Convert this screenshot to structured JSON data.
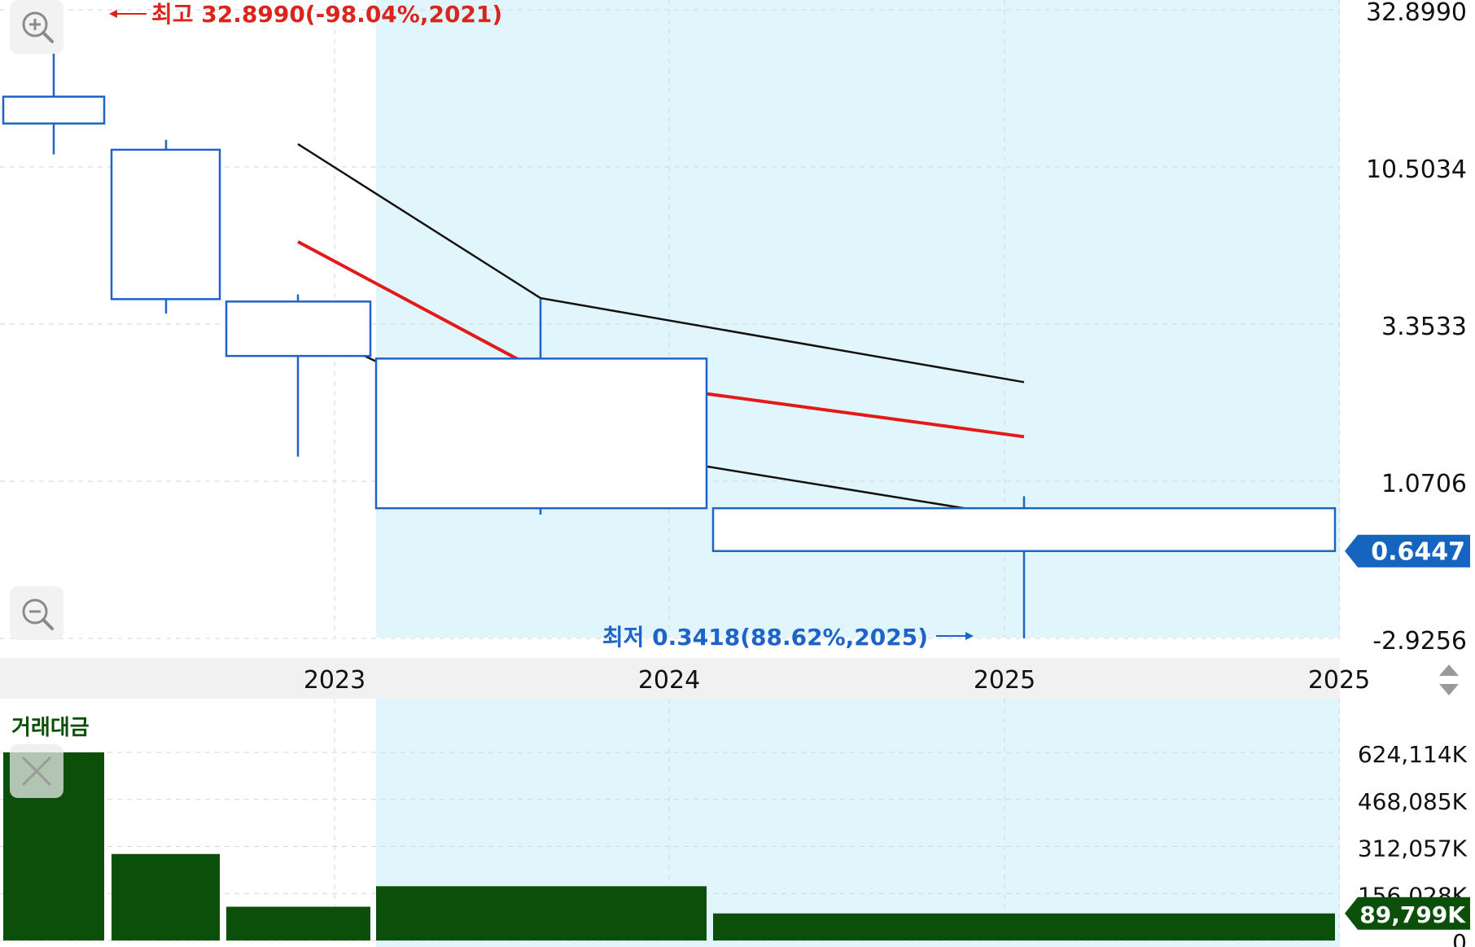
{
  "chart_data": {
    "type": "candlestick",
    "price_axis": {
      "scale": "log",
      "ticks": [
        "32.8990",
        "10.5034",
        "3.3533",
        "1.0706",
        "-2.9256"
      ]
    },
    "x_axis": {
      "ticks": [
        "2023",
        "2024",
        "2025",
        "2025"
      ]
    },
    "candles": [
      {
        "open": 17.5,
        "close": 14.4,
        "high": 32.899,
        "low": 11.5
      },
      {
        "open": 11.9,
        "close": 4.02,
        "high": 12.8,
        "low": 3.62
      },
      {
        "open": 3.95,
        "close": 2.66,
        "high": 4.16,
        "low": 1.28
      },
      {
        "open": 2.61,
        "close": 0.88,
        "high": 4.02,
        "low": 0.84
      },
      {
        "open": 0.88,
        "close": 0.6447,
        "high": 0.96,
        "low": 0.3418
      }
    ],
    "bands": [
      {
        "name": "upper",
        "color": "#111111",
        "values": [
          12.4,
          4.05,
          2.2
        ]
      },
      {
        "name": "middle",
        "color": "#e31a1a",
        "values": [
          6.1,
          2.38,
          1.48
        ]
      },
      {
        "name": "lower",
        "color": "#111111",
        "values": [
          3.35,
          1.45,
          0.82
        ]
      }
    ],
    "annotations": {
      "high": {
        "text": "최고 32.8990(-98.04%,2021)",
        "color": "#d9261c"
      },
      "low": {
        "text": "최저 0.3418(88.62%,2025)",
        "color": "#1e64c8"
      }
    },
    "current_price": {
      "label": "0.6447",
      "color": "#1565c0"
    },
    "volume": {
      "title": "거래대금",
      "unit": "K",
      "ticks": [
        "624,114K",
        "468,085K",
        "312,057K",
        "156,028K",
        "0"
      ],
      "values": [
        624114,
        287000,
        112000,
        180000,
        89799
      ],
      "current_label": "89,799K",
      "color": "#0b4f0b",
      "ylim": [
        0,
        624114
      ]
    },
    "highlight_color": "#e1f6fc",
    "candle_color": "#1e64c8"
  },
  "controls": {
    "zoom_in_icon": "zoom-in-icon",
    "zoom_out_icon": "zoom-out-icon",
    "close_icon": "close-icon",
    "scroll_icon": "up-down-arrows-icon"
  }
}
